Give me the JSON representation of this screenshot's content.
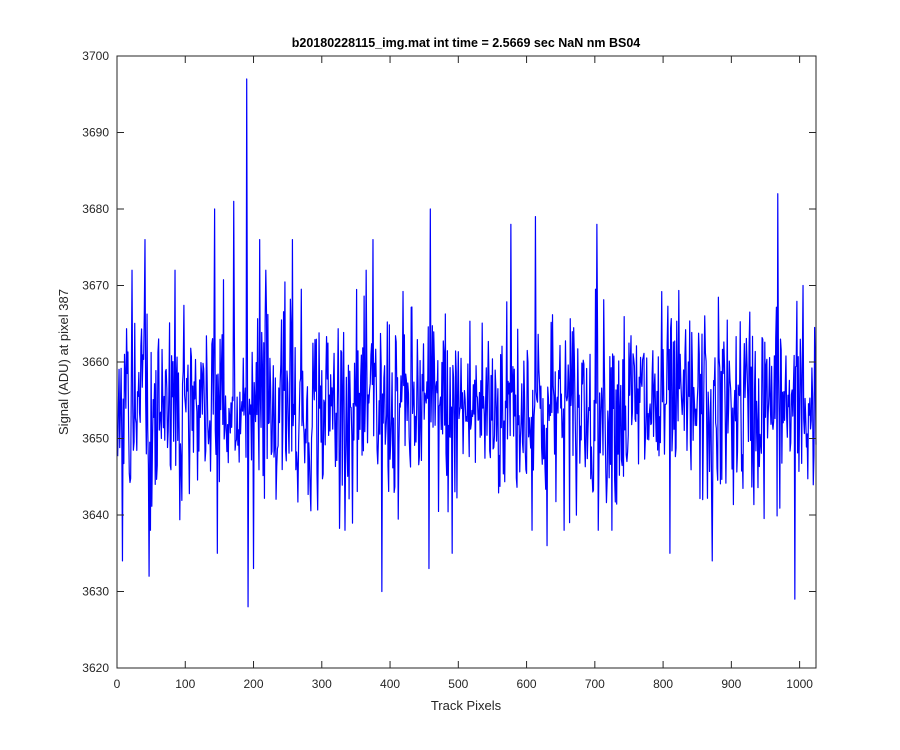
{
  "chart_data": {
    "type": "line",
    "title": "b20180228115_img.mat int time = 2.5669 sec  NaN nm BS04",
    "xlabel": "Track Pixels",
    "ylabel": "Signal (ADU) at pixel 387",
    "xlim": [
      0,
      1024
    ],
    "ylim": [
      3620,
      3700
    ],
    "xticks": [
      0,
      100,
      200,
      300,
      400,
      500,
      600,
      700,
      800,
      900,
      1000
    ],
    "yticks": [
      3620,
      3630,
      3640,
      3650,
      3660,
      3670,
      3680,
      3690,
      3700
    ],
    "grid": false,
    "legend": "none",
    "series": [
      {
        "color": "#0000ff",
        "x_start": 1,
        "x_step": 1,
        "approx_mean": 3654,
        "notable_points": [
          {
            "x": 8,
            "y": 3634
          },
          {
            "x": 22,
            "y": 3672
          },
          {
            "x": 41,
            "y": 3676
          },
          {
            "x": 47,
            "y": 3632
          },
          {
            "x": 85,
            "y": 3672
          },
          {
            "x": 143,
            "y": 3680
          },
          {
            "x": 147,
            "y": 3635
          },
          {
            "x": 171,
            "y": 3681
          },
          {
            "x": 190,
            "y": 3697
          },
          {
            "x": 192,
            "y": 3628
          },
          {
            "x": 200,
            "y": 3633
          },
          {
            "x": 209,
            "y": 3676
          },
          {
            "x": 257,
            "y": 3676
          },
          {
            "x": 375,
            "y": 3676
          },
          {
            "x": 388,
            "y": 3630
          },
          {
            "x": 457,
            "y": 3633
          },
          {
            "x": 459,
            "y": 3680
          },
          {
            "x": 491,
            "y": 3635
          },
          {
            "x": 577,
            "y": 3678
          },
          {
            "x": 613,
            "y": 3679
          },
          {
            "x": 630,
            "y": 3636
          },
          {
            "x": 663,
            "y": 3639
          },
          {
            "x": 703,
            "y": 3678
          },
          {
            "x": 810,
            "y": 3635
          },
          {
            "x": 872,
            "y": 3634
          },
          {
            "x": 968,
            "y": 3682
          },
          {
            "x": 993,
            "y": 3629
          },
          {
            "x": 1005,
            "y": 3670
          }
        ]
      }
    ]
  }
}
